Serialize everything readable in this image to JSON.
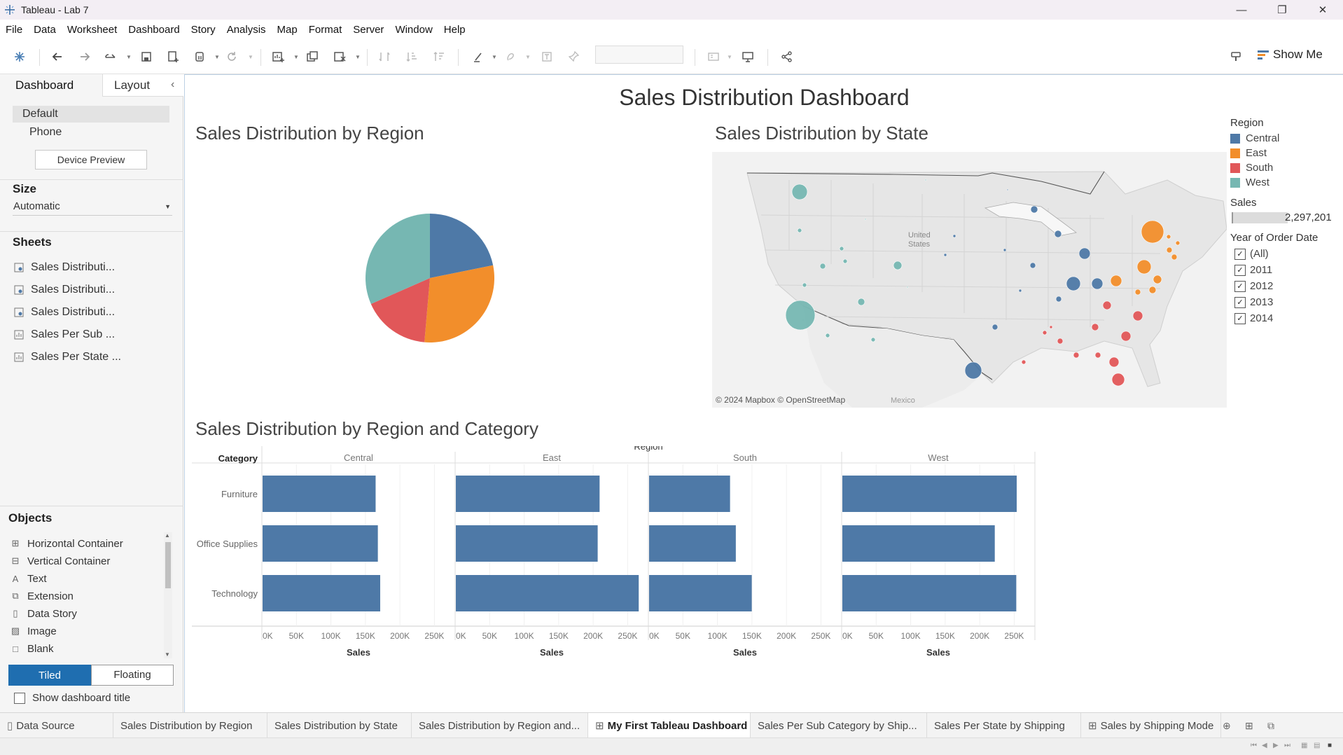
{
  "window": {
    "title": "Tableau - Lab 7",
    "minimize": "—",
    "restore": "❐",
    "close": "✕"
  },
  "menu": [
    "File",
    "Data",
    "Worksheet",
    "Dashboard",
    "Story",
    "Analysis",
    "Map",
    "Format",
    "Server",
    "Window",
    "Help"
  ],
  "toolbar": {
    "show_me": "Show Me"
  },
  "left_panel": {
    "tabs": {
      "dashboard": "Dashboard",
      "layout": "Layout"
    },
    "device": {
      "default": "Default",
      "phone": "Phone",
      "preview_button": "Device Preview"
    },
    "size": {
      "heading": "Size",
      "value": "Automatic"
    },
    "sheets": {
      "heading": "Sheets",
      "items": [
        "Sales Distributi...",
        "Sales Distributi...",
        "Sales Distributi...",
        "Sales Per Sub ...",
        "Sales Per State ..."
      ]
    },
    "objects": {
      "heading": "Objects",
      "items": [
        "Horizontal Container",
        "Vertical Container",
        "Text",
        "Extension",
        "Data Story",
        "Image",
        "Blank"
      ]
    },
    "layout_mode": {
      "tiled": "Tiled",
      "floating": "Floating"
    },
    "show_title": "Show dashboard title"
  },
  "dashboard": {
    "title": "Sales Distribution Dashboard",
    "pie": {
      "title": "Sales Distribution by Region"
    },
    "map": {
      "title": "Sales Distribution by State",
      "country_label_1": "United",
      "country_label_2": "States",
      "mexico_label": "Mexico",
      "attribution": "© 2024 Mapbox © OpenStreetMap"
    },
    "bar": {
      "title": "Sales Distribution by Region and Category",
      "region_header": "Region",
      "category_header": "Category",
      "axis_label": "Sales"
    }
  },
  "legend": {
    "region_heading": "Region",
    "regions": [
      {
        "name": "Central",
        "color": "#4e79a7"
      },
      {
        "name": "East",
        "color": "#f28e2b"
      },
      {
        "name": "South",
        "color": "#e15759"
      },
      {
        "name": "West",
        "color": "#76b7b2"
      }
    ],
    "sales_heading": "Sales",
    "sales_value": "2,297,201",
    "year_heading": "Year of Order Date",
    "years": [
      "(All)",
      "2011",
      "2012",
      "2013",
      "2014"
    ]
  },
  "chart_data": [
    {
      "type": "pie",
      "title": "Sales Distribution by Region",
      "categories": [
        "Central",
        "East",
        "South",
        "West"
      ],
      "values": [
        501240,
        678781,
        391722,
        725458
      ],
      "colors": [
        "#4e79a7",
        "#f28e2b",
        "#e15759",
        "#76b7b2"
      ]
    },
    {
      "type": "bar",
      "title": "Sales Distribution by Region and Category",
      "orientation": "horizontal",
      "panels": [
        "Central",
        "East",
        "South",
        "West"
      ],
      "categories": [
        "Furniture",
        "Office Supplies",
        "Technology"
      ],
      "series": [
        {
          "name": "Central",
          "values": [
            163797,
            167026,
            170416
          ]
        },
        {
          "name": "East",
          "values": [
            208291,
            205516,
            264974
          ]
        },
        {
          "name": "South",
          "values": [
            117299,
            125651,
            148772
          ]
        },
        {
          "name": "West",
          "values": [
            252613,
            220853,
            251992
          ]
        }
      ],
      "xlabel": "Sales",
      "xlim": [
        0,
        280000
      ],
      "xticks": [
        "0K",
        "50K",
        "100K",
        "150K",
        "200K",
        "250K"
      ],
      "bar_color": "#4e79a7"
    }
  ],
  "bottom_tabs": [
    "Data Source",
    "Sales Distribution by Region",
    "Sales Distribution by State",
    "Sales Distribution by Region and...",
    "My First Tableau Dashboard",
    "Sales Per Sub Category by Ship...",
    "Sales Per State by Shipping",
    "Sales by Shipping Mode"
  ]
}
